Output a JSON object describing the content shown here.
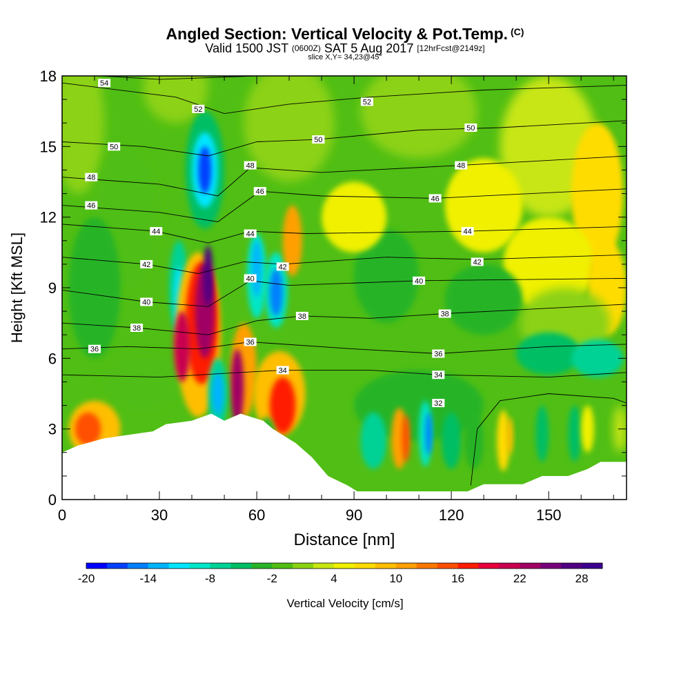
{
  "header": {
    "title": "Angled Section: Vertical Velocity & Pot.Temp.",
    "title_unit": "(C)",
    "subtitle_prefix": "Valid 1500 JST",
    "subtitle_utc": "(0600Z)",
    "subtitle_date": "SAT 5 Aug 2017",
    "subtitle_fcst": "[12hrFcst@2149z]",
    "slice": "slice X,Y= 34,23@45°"
  },
  "chart_data": {
    "type": "heatmap",
    "xlabel": "Distance [nm]",
    "ylabel": "Height [Kft MSL]",
    "xlim": [
      0,
      174
    ],
    "ylim": [
      0,
      18
    ],
    "xticks": [
      0,
      30,
      60,
      90,
      120,
      150
    ],
    "yticks": [
      0,
      3,
      6,
      9,
      12,
      15,
      18
    ],
    "colorbar": {
      "label": "Vertical Velocity [cm/s]",
      "min": -20,
      "max": 30,
      "step": 2,
      "tick_labels": [
        "-20",
        "-14",
        "-8",
        "-2",
        "4",
        "10",
        "16",
        "22",
        "28"
      ],
      "colors": [
        "#0000ff",
        "#0040ff",
        "#0080ff",
        "#00b4ff",
        "#00e6ff",
        "#00e6c8",
        "#00d296",
        "#00be64",
        "#28b428",
        "#50be14",
        "#8cd214",
        "#c8e614",
        "#f0f000",
        "#ffdc00",
        "#ffbe00",
        "#ffa000",
        "#ff7800",
        "#ff5000",
        "#ff1e00",
        "#e6003c",
        "#c80050",
        "#a00064",
        "#780078",
        "#500082",
        "#3c0090"
      ]
    },
    "terrain": [
      [
        0,
        2.0
      ],
      [
        5,
        2.3
      ],
      [
        13,
        2.6
      ],
      [
        28,
        2.9
      ],
      [
        32,
        3.2
      ],
      [
        40,
        3.35
      ],
      [
        46,
        3.65
      ],
      [
        50,
        3.35
      ],
      [
        55,
        3.65
      ],
      [
        62,
        3.35
      ],
      [
        65,
        3.0
      ],
      [
        72,
        2.4
      ],
      [
        77,
        1.8
      ],
      [
        82,
        1.0
      ],
      [
        88,
        0.6
      ],
      [
        91,
        0.35
      ],
      [
        110,
        0.35
      ],
      [
        125,
        0.35
      ],
      [
        130,
        0.65
      ],
      [
        142,
        0.65
      ],
      [
        148,
        1.0
      ],
      [
        156,
        1.0
      ],
      [
        162,
        1.3
      ],
      [
        166,
        1.6
      ],
      [
        174,
        1.6
      ]
    ],
    "theta_contours": [
      {
        "label": "54",
        "label_x": 13,
        "label_y": 17.7,
        "pts": [
          [
            0,
            18.1
          ],
          [
            30,
            17.85
          ],
          [
            70,
            18.05
          ],
          [
            120,
            18.15
          ],
          [
            174,
            18.3
          ]
        ]
      },
      {
        "label": "52",
        "label_x": 42,
        "label_y": 16.6,
        "pts": [
          [
            0,
            17.7
          ],
          [
            35,
            17.1
          ],
          [
            50,
            16.4
          ],
          [
            70,
            16.8
          ],
          [
            95,
            17.1
          ],
          [
            130,
            17.4
          ],
          [
            174,
            17.6
          ]
        ]
      },
      {
        "label": "52",
        "label_x": 94,
        "label_y": 16.9
      },
      {
        "label": "50",
        "label_x": 16,
        "label_y": 15.0,
        "pts": [
          [
            0,
            15.2
          ],
          [
            25,
            15.0
          ],
          [
            45,
            14.6
          ],
          [
            60,
            15.2
          ],
          [
            79,
            15.3
          ],
          [
            110,
            15.7
          ],
          [
            135,
            15.8
          ],
          [
            174,
            16.1
          ]
        ]
      },
      {
        "label": "50",
        "label_x": 79,
        "label_y": 15.3
      },
      {
        "label": "50",
        "label_x": 126,
        "label_y": 15.8
      },
      {
        "label": "48",
        "label_x": 9,
        "label_y": 13.7,
        "pts": [
          [
            0,
            13.7
          ],
          [
            30,
            13.4
          ],
          [
            48,
            12.9
          ],
          [
            58,
            14.1
          ],
          [
            80,
            13.9
          ],
          [
            123,
            14.2
          ],
          [
            174,
            14.6
          ]
        ]
      },
      {
        "label": "48",
        "label_x": 58,
        "label_y": 14.2
      },
      {
        "label": "48",
        "label_x": 123,
        "label_y": 14.2
      },
      {
        "label": "46",
        "label_x": 9,
        "label_y": 12.5,
        "pts": [
          [
            0,
            12.5
          ],
          [
            30,
            12.2
          ],
          [
            48,
            11.8
          ],
          [
            61,
            13.1
          ],
          [
            80,
            12.9
          ],
          [
            115,
            12.8
          ],
          [
            174,
            13.2
          ]
        ]
      },
      {
        "label": "46",
        "label_x": 61,
        "label_y": 13.1
      },
      {
        "label": "46",
        "label_x": 115,
        "label_y": 12.8
      },
      {
        "label": "44",
        "label_x": 29,
        "label_y": 11.4,
        "pts": [
          [
            0,
            11.7
          ],
          [
            29,
            11.4
          ],
          [
            45,
            10.9
          ],
          [
            58,
            11.4
          ],
          [
            75,
            11.3
          ],
          [
            125,
            11.4
          ],
          [
            174,
            11.6
          ]
        ]
      },
      {
        "label": "44",
        "label_x": 58,
        "label_y": 11.3
      },
      {
        "label": "44",
        "label_x": 125,
        "label_y": 11.4
      },
      {
        "label": "42",
        "label_x": 26,
        "label_y": 10.0,
        "pts": [
          [
            0,
            10.3
          ],
          [
            26,
            10.0
          ],
          [
            42,
            9.6
          ],
          [
            56,
            10.1
          ],
          [
            68,
            10.0
          ],
          [
            100,
            10.3
          ],
          [
            128,
            10.2
          ],
          [
            174,
            10.4
          ]
        ]
      },
      {
        "label": "42",
        "label_x": 68,
        "label_y": 9.9
      },
      {
        "label": "42",
        "label_x": 128,
        "label_y": 10.1
      },
      {
        "label": "40",
        "label_x": 26,
        "label_y": 8.4,
        "pts": [
          [
            0,
            8.9
          ],
          [
            26,
            8.4
          ],
          [
            45,
            8.2
          ],
          [
            58,
            9.3
          ],
          [
            70,
            9.1
          ],
          [
            110,
            9.3
          ],
          [
            174,
            9.4
          ]
        ]
      },
      {
        "label": "40",
        "label_x": 58,
        "label_y": 9.4
      },
      {
        "label": "40",
        "label_x": 110,
        "label_y": 9.3
      },
      {
        "label": "38",
        "label_x": 23,
        "label_y": 7.3,
        "pts": [
          [
            0,
            7.5
          ],
          [
            23,
            7.3
          ],
          [
            45,
            7.0
          ],
          [
            60,
            7.6
          ],
          [
            74,
            7.8
          ],
          [
            95,
            7.7
          ],
          [
            118,
            7.9
          ],
          [
            174,
            8.3
          ]
        ]
      },
      {
        "label": "38",
        "label_x": 74,
        "label_y": 7.8
      },
      {
        "label": "38",
        "label_x": 118,
        "label_y": 7.9
      },
      {
        "label": "36",
        "label_x": 10,
        "label_y": 6.4,
        "pts": [
          [
            0,
            6.4
          ],
          [
            20,
            6.5
          ],
          [
            42,
            6.4
          ],
          [
            58,
            6.7
          ],
          [
            90,
            6.4
          ],
          [
            116,
            6.2
          ],
          [
            150,
            6.5
          ],
          [
            174,
            6.6
          ]
        ]
      },
      {
        "label": "36",
        "label_x": 58,
        "label_y": 6.7
      },
      {
        "label": "36",
        "label_x": 116,
        "label_y": 6.2
      },
      {
        "label": "34",
        "label_x": 68,
        "label_y": 5.5,
        "pts": [
          [
            0,
            5.3
          ],
          [
            30,
            5.2
          ],
          [
            55,
            5.4
          ],
          [
            68,
            5.5
          ],
          [
            95,
            5.5
          ],
          [
            116,
            5.3
          ],
          [
            150,
            5.2
          ],
          [
            174,
            5.4
          ]
        ]
      },
      {
        "label": "34",
        "label_x": 116,
        "label_y": 5.3
      },
      {
        "label": "32",
        "label_x": 116,
        "label_y": 4.1,
        "pts": [
          [
            126,
            0.6
          ],
          [
            128,
            3.0
          ],
          [
            135,
            4.2
          ],
          [
            150,
            4.5
          ],
          [
            170,
            4.3
          ],
          [
            174,
            4.1
          ]
        ]
      }
    ]
  }
}
